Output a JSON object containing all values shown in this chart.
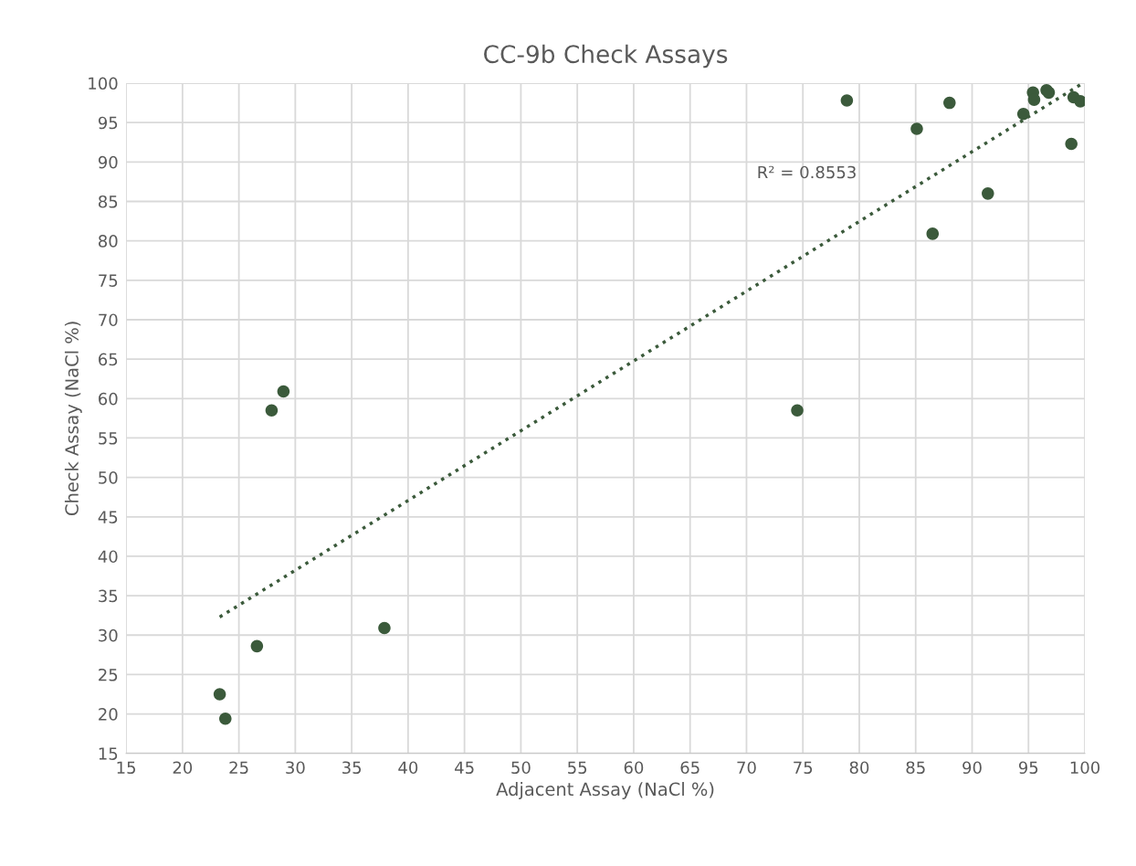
{
  "chart_data": {
    "type": "scatter",
    "title": "CC-9b Check Assays",
    "xlabel": "Adjacent Assay (NaCl %)",
    "ylabel": "Check Assay (NaCl %)",
    "series": [
      {
        "color": "#3b5a3b",
        "marker": "circle",
        "x": [
          23.3,
          23.8,
          26.6,
          27.9,
          28.95,
          37.9,
          74.5,
          78.9,
          85.1,
          88.0,
          86.5,
          91.4,
          94.55,
          95.4,
          95.5,
          96.6,
          96.8,
          98.8,
          99.0,
          99.6
        ],
        "values": [
          22.5,
          19.4,
          28.6,
          58.5,
          60.9,
          30.9,
          58.5,
          97.8,
          94.2,
          97.5,
          80.9,
          86.0,
          96.1,
          98.8,
          97.9,
          99.1,
          98.8,
          92.3,
          98.2,
          97.7
        ]
      },
      {
        "type": "line",
        "color": "#3b5a3b",
        "marker": "none",
        "line_style": "dotted",
        "x": [
          23.3,
          99.6
        ],
        "values": [
          32.3,
          99.8
        ]
      }
    ],
    "annotations": [
      "R² = 0.8553"
    ],
    "xlim": [
      15,
      100
    ],
    "xticks": [
      15,
      20,
      25,
      30,
      35,
      40,
      45,
      50,
      55,
      60,
      65,
      70,
      75,
      80,
      85,
      90,
      95,
      100
    ],
    "ylim": [
      15,
      100
    ],
    "yticks": [
      15,
      20,
      25,
      30,
      35,
      40,
      45,
      50,
      55,
      60,
      65,
      70,
      75,
      80,
      85,
      90,
      95,
      100
    ],
    "grid": true,
    "legend": false
  }
}
